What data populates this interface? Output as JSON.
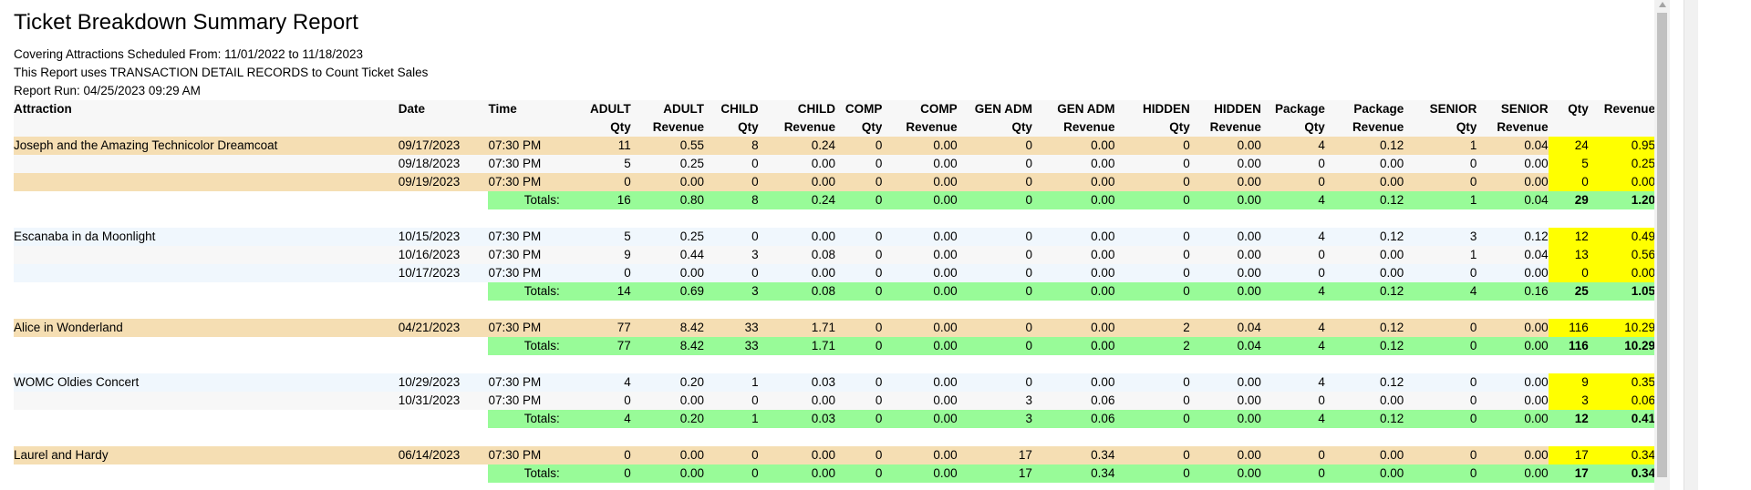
{
  "report": {
    "title": "Ticket Breakdown Summary Report",
    "meta": [
      "Covering Attractions Scheduled From: 11/01/2022 to 11/18/2023",
      "This Report uses TRANSACTION DETAIL RECORDS to Count Ticket Sales",
      "Report Run: 04/25/2023 09:29 AM"
    ],
    "header_row1": [
      "Attraction",
      "Date",
      "Time",
      "ADULT",
      "ADULT",
      "CHILD",
      "CHILD",
      "COMP",
      "COMP",
      "GEN ADM",
      "GEN ADM",
      "HIDDEN",
      "HIDDEN",
      "Package",
      "Package",
      "SENIOR",
      "SENIOR",
      "Qty",
      "Revenue"
    ],
    "header_row2": [
      "",
      "",
      "",
      "Qty",
      "Revenue",
      "Qty",
      "Revenue",
      "Qty",
      "Revenue",
      "Qty",
      "Revenue",
      "Qty",
      "Revenue",
      "Qty",
      "Revenue",
      "Qty",
      "Revenue",
      "",
      ""
    ],
    "totals_label": "Totals:",
    "groups": [
      {
        "name": "Joseph and the Amazing Technicolor Dreamcoat",
        "band": "orange",
        "rows": [
          {
            "date": "09/17/2023",
            "time": "07:30 PM",
            "vals": [
              "11",
              "0.55",
              "8",
              "0.24",
              "0",
              "0.00",
              "0",
              "0.00",
              "0",
              "0.00",
              "4",
              "0.12",
              "1",
              "0.04",
              "24",
              "0.95"
            ]
          },
          {
            "date": "09/18/2023",
            "time": "07:30 PM",
            "vals": [
              "5",
              "0.25",
              "0",
              "0.00",
              "0",
              "0.00",
              "0",
              "0.00",
              "0",
              "0.00",
              "0",
              "0.00",
              "0",
              "0.00",
              "5",
              "0.25"
            ]
          },
          {
            "date": "09/19/2023",
            "time": "07:30 PM",
            "vals": [
              "0",
              "0.00",
              "0",
              "0.00",
              "0",
              "0.00",
              "0",
              "0.00",
              "0",
              "0.00",
              "0",
              "0.00",
              "0",
              "0.00",
              "0",
              "0.00"
            ]
          }
        ],
        "totals": [
          "16",
          "0.80",
          "8",
          "0.24",
          "0",
          "0.00",
          "0",
          "0.00",
          "0",
          "0.00",
          "4",
          "0.12",
          "1",
          "0.04",
          "29",
          "1.20"
        ]
      },
      {
        "name": "Escanaba in da Moonlight",
        "band": "blue",
        "rows": [
          {
            "date": "10/15/2023",
            "time": "07:30 PM",
            "vals": [
              "5",
              "0.25",
              "0",
              "0.00",
              "0",
              "0.00",
              "0",
              "0.00",
              "0",
              "0.00",
              "4",
              "0.12",
              "3",
              "0.12",
              "12",
              "0.49"
            ]
          },
          {
            "date": "10/16/2023",
            "time": "07:30 PM",
            "vals": [
              "9",
              "0.44",
              "3",
              "0.08",
              "0",
              "0.00",
              "0",
              "0.00",
              "0",
              "0.00",
              "0",
              "0.00",
              "1",
              "0.04",
              "13",
              "0.56"
            ]
          },
          {
            "date": "10/17/2023",
            "time": "07:30 PM",
            "vals": [
              "0",
              "0.00",
              "0",
              "0.00",
              "0",
              "0.00",
              "0",
              "0.00",
              "0",
              "0.00",
              "0",
              "0.00",
              "0",
              "0.00",
              "0",
              "0.00"
            ]
          }
        ],
        "totals": [
          "14",
          "0.69",
          "3",
          "0.08",
          "0",
          "0.00",
          "0",
          "0.00",
          "0",
          "0.00",
          "4",
          "0.12",
          "4",
          "0.16",
          "25",
          "1.05"
        ]
      },
      {
        "name": "Alice in Wonderland",
        "band": "orange",
        "rows": [
          {
            "date": "04/21/2023",
            "time": "07:30 PM",
            "vals": [
              "77",
              "8.42",
              "33",
              "1.71",
              "0",
              "0.00",
              "0",
              "0.00",
              "2",
              "0.04",
              "4",
              "0.12",
              "0",
              "0.00",
              "116",
              "10.29"
            ]
          }
        ],
        "totals": [
          "77",
          "8.42",
          "33",
          "1.71",
          "0",
          "0.00",
          "0",
          "0.00",
          "2",
          "0.04",
          "4",
          "0.12",
          "0",
          "0.00",
          "116",
          "10.29"
        ]
      },
      {
        "name": "WOMC Oldies Concert",
        "band": "blue",
        "rows": [
          {
            "date": "10/29/2023",
            "time": "07:30 PM",
            "vals": [
              "4",
              "0.20",
              "1",
              "0.03",
              "0",
              "0.00",
              "0",
              "0.00",
              "0",
              "0.00",
              "4",
              "0.12",
              "0",
              "0.00",
              "9",
              "0.35"
            ]
          },
          {
            "date": "10/31/2023",
            "time": "07:30 PM",
            "vals": [
              "0",
              "0.00",
              "0",
              "0.00",
              "0",
              "0.00",
              "3",
              "0.06",
              "0",
              "0.00",
              "0",
              "0.00",
              "0",
              "0.00",
              "3",
              "0.06"
            ]
          }
        ],
        "totals": [
          "4",
          "0.20",
          "1",
          "0.03",
          "0",
          "0.00",
          "3",
          "0.06",
          "0",
          "0.00",
          "4",
          "0.12",
          "0",
          "0.00",
          "12",
          "0.41"
        ]
      },
      {
        "name": "Laurel and Hardy",
        "band": "orange",
        "rows": [
          {
            "date": "06/14/2023",
            "time": "07:30 PM",
            "vals": [
              "0",
              "0.00",
              "0",
              "0.00",
              "0",
              "0.00",
              "17",
              "0.34",
              "0",
              "0.00",
              "0",
              "0.00",
              "0",
              "0.00",
              "17",
              "0.34"
            ]
          }
        ],
        "totals": [
          "0",
          "0.00",
          "0",
          "0.00",
          "0",
          "0.00",
          "17",
          "0.34",
          "0",
          "0.00",
          "0",
          "0.00",
          "0",
          "0.00",
          "17",
          "0.34"
        ]
      }
    ]
  },
  "colors": {
    "band_orange": "#f5deb3",
    "band_blue": "#f0f7fd",
    "band_grey": "#f7f7f7",
    "totals_green": "#98fb98",
    "highlight_yellow": "#ffff00"
  }
}
